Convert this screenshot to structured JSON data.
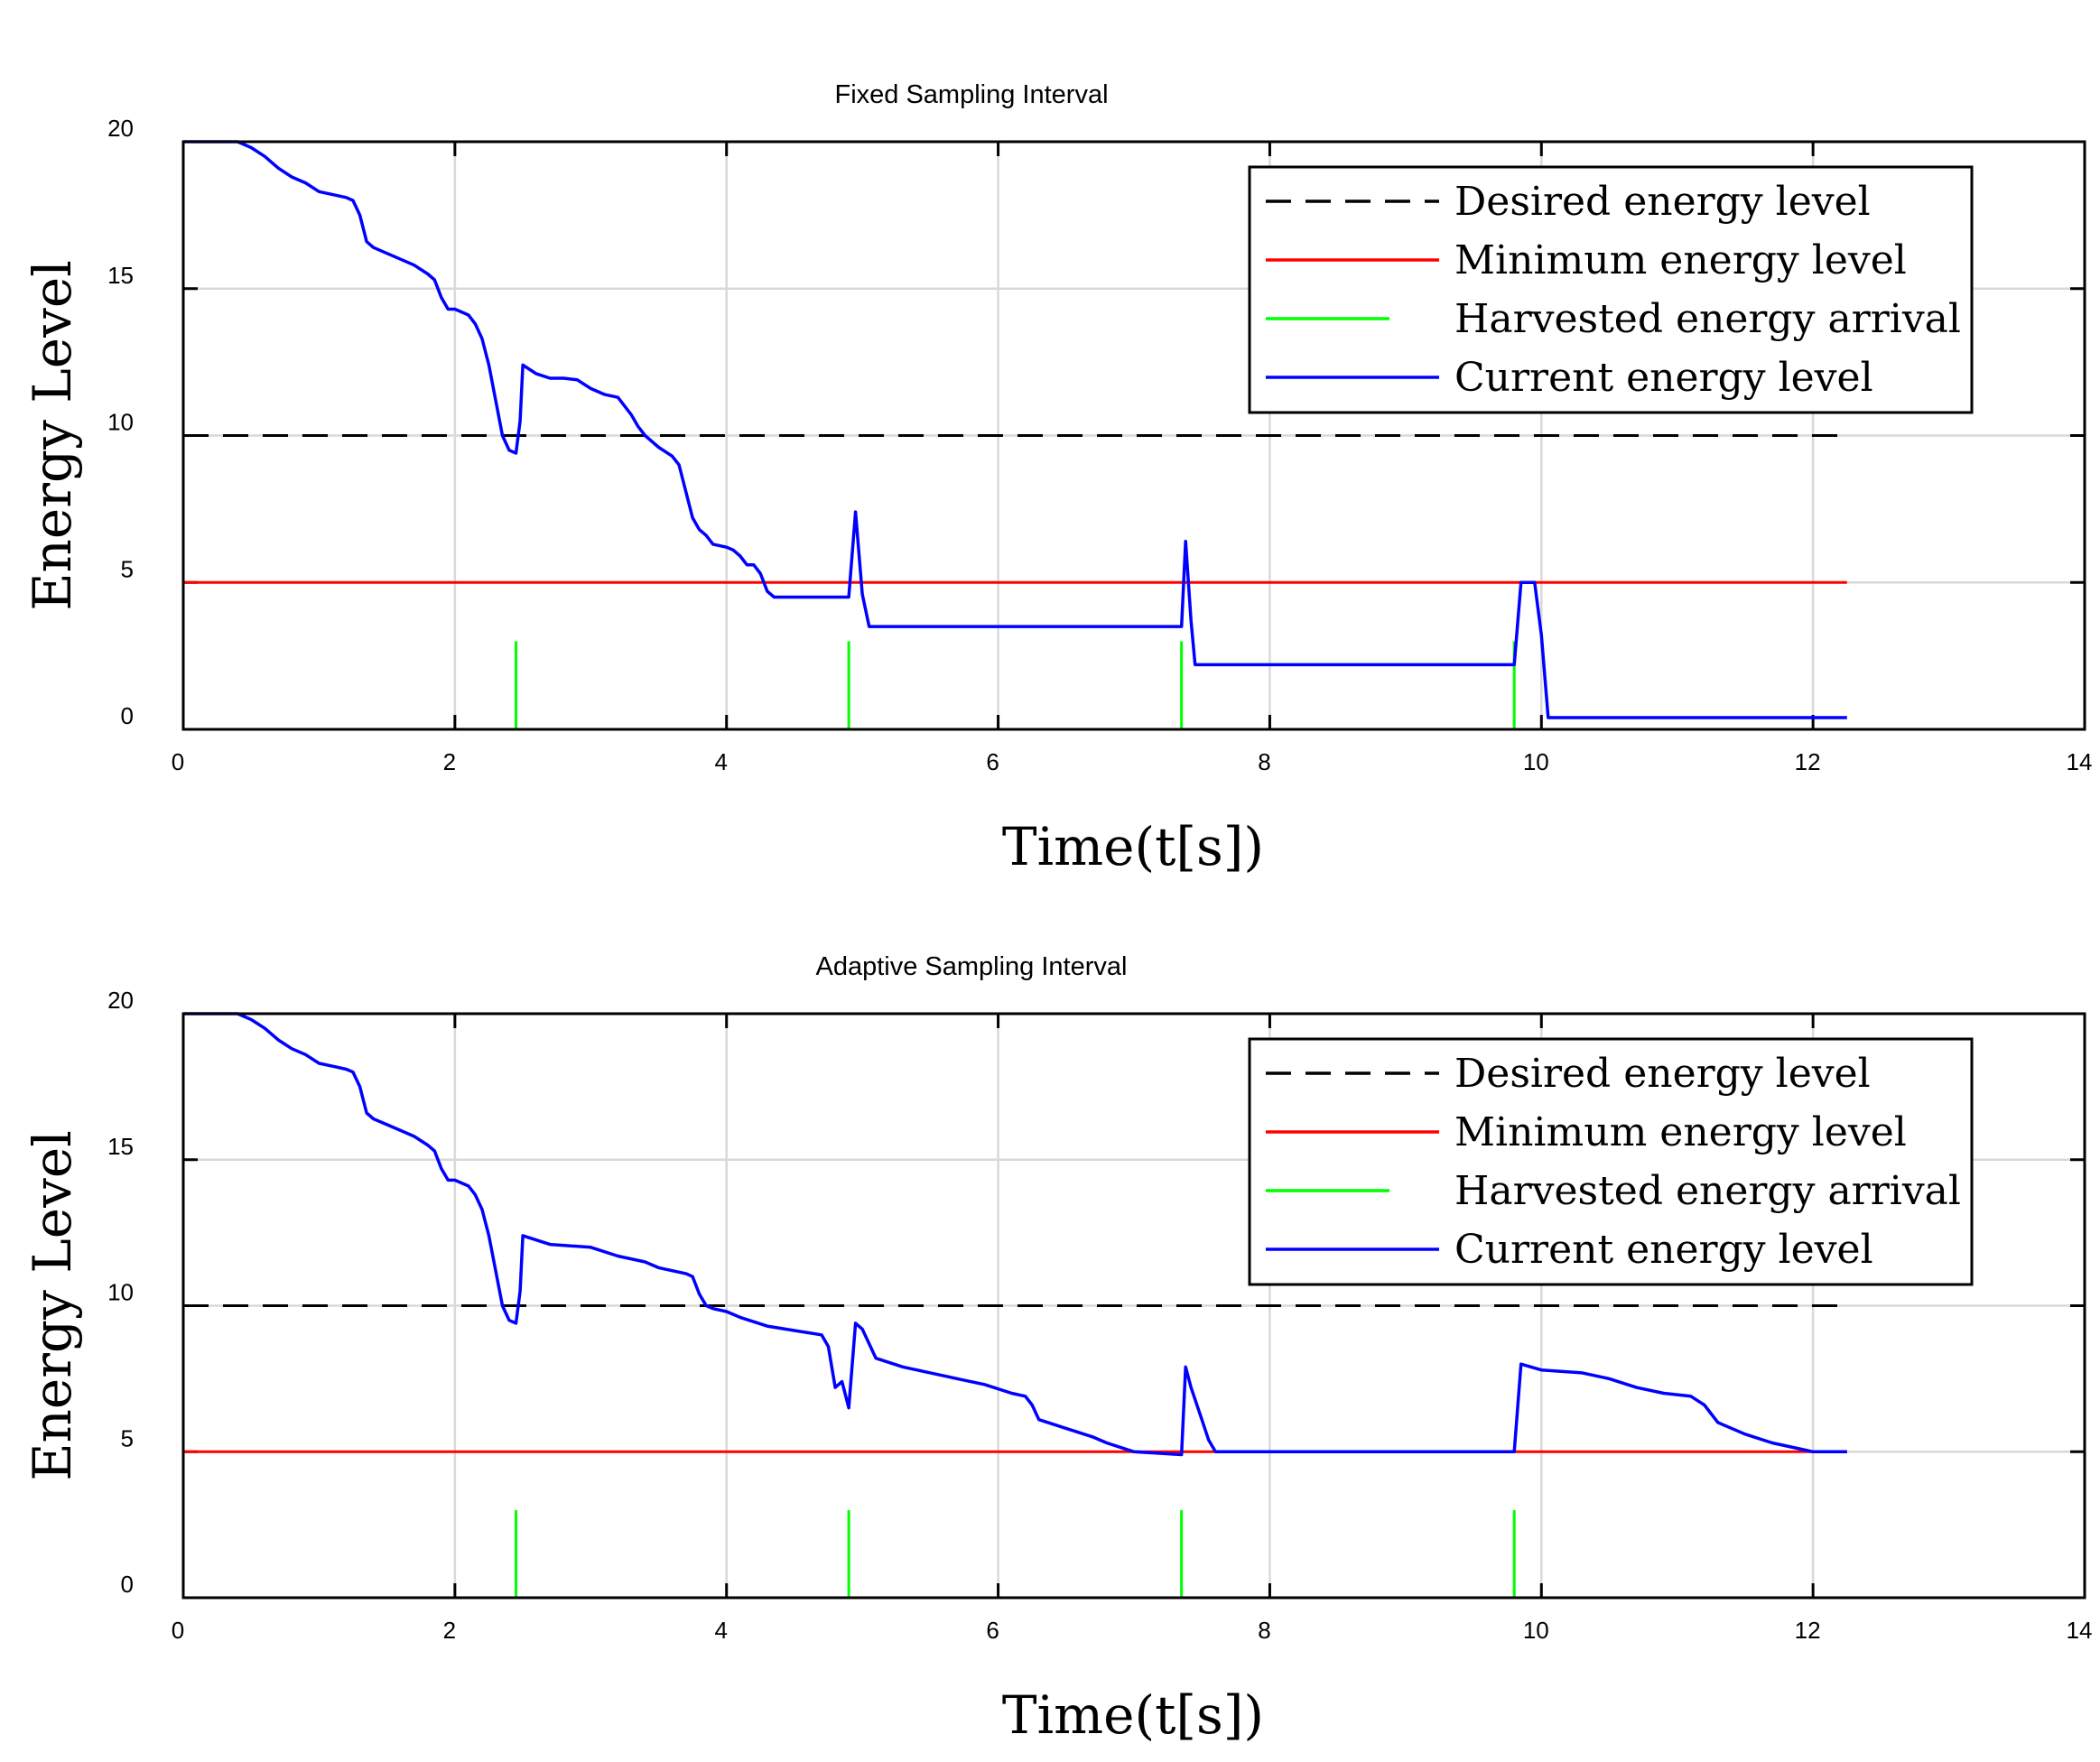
{
  "chart_data": [
    {
      "type": "line",
      "title": "Fixed Sampling Interval",
      "xlabel": "Time(t[s])",
      "ylabel": "Energy Level",
      "xlim": [
        0,
        14
      ],
      "ylim": [
        0,
        20
      ],
      "xticks": [
        0,
        2,
        4,
        6,
        8,
        10,
        12,
        14
      ],
      "yticks": [
        0,
        5,
        10,
        15,
        20
      ],
      "grid": true,
      "legend_position": "top-right",
      "legend": [
        "Desired energy level",
        "Minimum energy level",
        "Harvested energy arrival",
        "Current energy level"
      ],
      "desired_level": 10,
      "minimum_level": 5,
      "harvest_arrivals": {
        "x": [
          2.45,
          4.9,
          7.35,
          9.8
        ],
        "height": 3
      },
      "series": [
        {
          "name": "Current energy level",
          "x": [
            0,
            0.4,
            0.5,
            0.6,
            0.7,
            0.8,
            0.9,
            1.0,
            1.1,
            1.2,
            1.25,
            1.3,
            1.35,
            1.4,
            1.5,
            1.6,
            1.7,
            1.8,
            1.85,
            1.9,
            1.95,
            2.0,
            2.1,
            2.15,
            2.2,
            2.25,
            2.3,
            2.35,
            2.4,
            2.45,
            2.48,
            2.5,
            2.6,
            2.7,
            2.8,
            2.9,
            3.0,
            3.1,
            3.2,
            3.25,
            3.3,
            3.35,
            3.4,
            3.5,
            3.6,
            3.65,
            3.7,
            3.75,
            3.8,
            3.85,
            3.9,
            4.0,
            4.05,
            4.1,
            4.15,
            4.2,
            4.25,
            4.3,
            4.35,
            4.4,
            4.9,
            4.95,
            5.0,
            5.05,
            7.35,
            7.38,
            7.42,
            7.45,
            9.8,
            9.85,
            9.95,
            10.0,
            10.05,
            12.25
          ],
          "values": [
            20,
            20,
            19.8,
            19.5,
            19.1,
            18.8,
            18.6,
            18.3,
            18.2,
            18.1,
            18.0,
            17.5,
            16.6,
            16.4,
            16.2,
            16.0,
            15.8,
            15.5,
            15.3,
            14.7,
            14.3,
            14.3,
            14.1,
            13.8,
            13.3,
            12.4,
            11.2,
            10.0,
            9.5,
            9.4,
            10.5,
            12.4,
            12.1,
            11.95,
            11.95,
            11.9,
            11.6,
            11.4,
            11.3,
            11.0,
            10.7,
            10.3,
            10.0,
            9.6,
            9.3,
            9.0,
            8.1,
            7.2,
            6.8,
            6.6,
            6.3,
            6.2,
            6.1,
            5.9,
            5.6,
            5.6,
            5.3,
            4.7,
            4.5,
            4.5,
            4.5,
            7.4,
            4.6,
            3.5,
            3.5,
            6.4,
            3.7,
            2.2,
            2.2,
            5.0,
            5.0,
            3.2,
            0.4,
            0.4
          ]
        }
      ]
    },
    {
      "type": "line",
      "title": "Adaptive Sampling Interval",
      "xlabel": "Time(t[s])",
      "ylabel": "Energy Level",
      "xlim": [
        0,
        14
      ],
      "ylim": [
        0,
        20
      ],
      "xticks": [
        0,
        2,
        4,
        6,
        8,
        10,
        12,
        14
      ],
      "yticks": [
        0,
        5,
        10,
        15,
        20
      ],
      "grid": true,
      "legend_position": "top-right",
      "legend": [
        "Desired energy level",
        "Minimum energy level",
        "Harvested energy arrival",
        "Current energy level"
      ],
      "desired_level": 10,
      "minimum_level": 5,
      "harvest_arrivals": {
        "x": [
          2.45,
          4.9,
          7.35,
          9.8
        ],
        "height": 3
      },
      "series": [
        {
          "name": "Current energy level",
          "x": [
            0,
            0.4,
            0.5,
            0.6,
            0.7,
            0.8,
            0.9,
            1.0,
            1.1,
            1.2,
            1.25,
            1.3,
            1.35,
            1.4,
            1.5,
            1.6,
            1.7,
            1.8,
            1.85,
            1.9,
            1.95,
            2.0,
            2.1,
            2.15,
            2.2,
            2.25,
            2.3,
            2.35,
            2.4,
            2.45,
            2.48,
            2.5,
            2.7,
            3.0,
            3.2,
            3.4,
            3.5,
            3.6,
            3.7,
            3.75,
            3.8,
            3.85,
            3.9,
            4.0,
            4.1,
            4.3,
            4.5,
            4.7,
            4.75,
            4.8,
            4.85,
            4.9,
            4.95,
            5.0,
            5.1,
            5.3,
            5.5,
            5.7,
            5.9,
            6.1,
            6.2,
            6.25,
            6.3,
            6.5,
            6.7,
            6.8,
            7.0,
            7.35,
            7.38,
            7.42,
            7.5,
            7.55,
            7.6,
            9.8,
            9.85,
            10.0,
            10.3,
            10.5,
            10.7,
            10.9,
            11.1,
            11.2,
            11.3,
            11.5,
            11.7,
            11.9,
            12.0,
            12.25
          ],
          "values": [
            20,
            20,
            19.8,
            19.5,
            19.1,
            18.8,
            18.6,
            18.3,
            18.2,
            18.1,
            18.0,
            17.5,
            16.6,
            16.4,
            16.2,
            16.0,
            15.8,
            15.5,
            15.3,
            14.7,
            14.3,
            14.3,
            14.1,
            13.8,
            13.3,
            12.4,
            11.2,
            10.0,
            9.5,
            9.4,
            10.5,
            12.4,
            12.1,
            12.0,
            11.7,
            11.5,
            11.3,
            11.2,
            11.1,
            11.0,
            10.4,
            10.0,
            9.9,
            9.8,
            9.6,
            9.3,
            9.15,
            9.0,
            8.6,
            7.2,
            7.4,
            6.5,
            9.4,
            9.2,
            8.2,
            7.9,
            7.7,
            7.5,
            7.3,
            7.0,
            6.9,
            6.6,
            6.1,
            5.8,
            5.5,
            5.3,
            5.0,
            4.9,
            7.9,
            7.2,
            6.1,
            5.4,
            5.0,
            5.0,
            8.0,
            7.8,
            7.7,
            7.5,
            7.2,
            7.0,
            6.9,
            6.6,
            6.0,
            5.6,
            5.3,
            5.1,
            5.0,
            5.0
          ]
        }
      ]
    }
  ]
}
